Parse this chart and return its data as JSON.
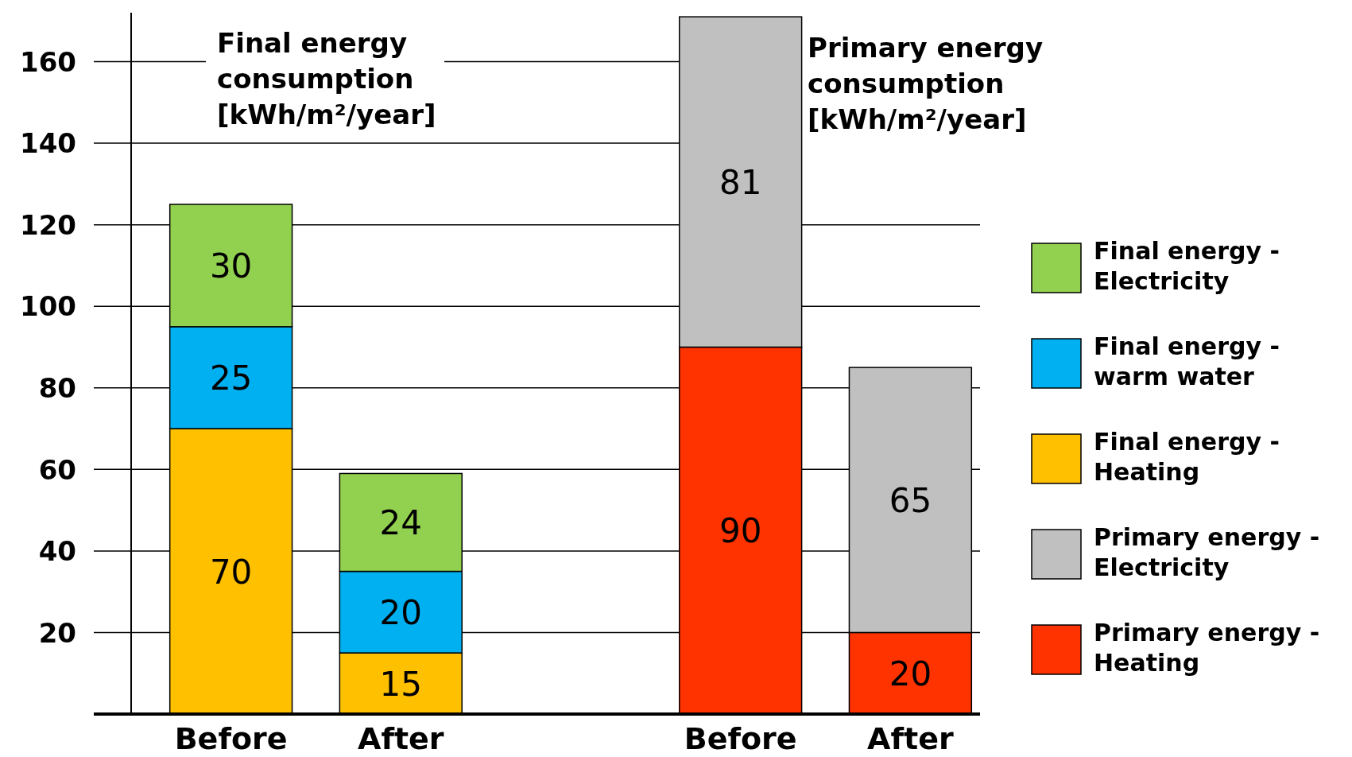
{
  "chart_data": {
    "type": "bar",
    "stacked": true,
    "categories": [
      "Before",
      "After",
      null,
      "Before",
      "After"
    ],
    "series": [
      {
        "name": "Primary energy - Heating",
        "color": "#ff3300",
        "values": [
          null,
          null,
          null,
          90,
          20
        ]
      },
      {
        "name": "Primary energy - Electricity",
        "color": "#c0c0c0",
        "values": [
          null,
          null,
          null,
          81,
          65
        ]
      },
      {
        "name": "Final energy - Heating",
        "color": "#ffc000",
        "values": [
          70,
          15,
          null,
          null,
          null
        ]
      },
      {
        "name": "Final energy - warm water",
        "color": "#00b0f0",
        "values": [
          25,
          20,
          null,
          null,
          null
        ]
      },
      {
        "name": "Final energy - Electricity",
        "color": "#92d050",
        "values": [
          30,
          24,
          null,
          null,
          null
        ]
      }
    ],
    "ylim": [
      0,
      172
    ],
    "yticks": [
      20,
      40,
      60,
      80,
      100,
      120,
      140,
      160
    ],
    "grid": "y",
    "data_labels": true,
    "legend": "right",
    "annotations": [
      "Final energy consumption [kWh/m²/year]",
      "Primary energy consumption [kWh/m²/year]"
    ]
  }
}
